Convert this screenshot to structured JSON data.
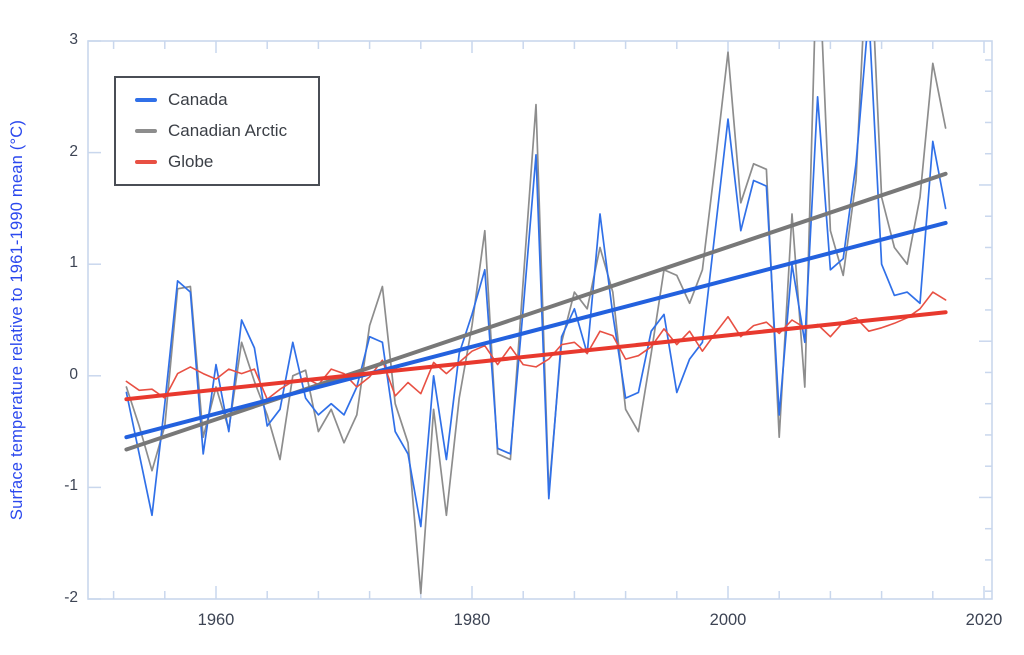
{
  "figure": {
    "background": "#ffffff",
    "frame_color": "#c9d7ed",
    "tick_label_color": "#3d4454",
    "y_axis_title_color": "#2b48ee"
  },
  "chart_data": {
    "type": "line",
    "title": "",
    "xlabel": "",
    "ylabel": "Surface temperature relative to 1961-1990 mean (°C)",
    "grid": false,
    "legend_position": "top-left",
    "x_range": [
      1950,
      2020.6
    ],
    "y_range": [
      -2,
      3
    ],
    "axes": {
      "x_tick_values": [
        1960,
        1980,
        2000,
        2020
      ],
      "x_tick_labels": [
        "1960",
        "1980",
        "2000",
        "2020"
      ],
      "x_minor_ticks": {
        "start": 1952,
        "step": 4,
        "end": 2020,
        "major_every": 20
      },
      "y_tick_values": [
        3,
        2,
        1,
        0,
        -1,
        -2
      ],
      "y_tick_labels": [
        "3",
        "2",
        "1",
        "0",
        "-1",
        "-2"
      ],
      "y_right_minor_ticks": {
        "start": 2.83,
        "step": -0.28,
        "count": 18,
        "long_every": 5,
        "long_offset": 4
      }
    },
    "x": [
      1953,
      1954,
      1955,
      1956,
      1957,
      1958,
      1959,
      1960,
      1961,
      1962,
      1963,
      1964,
      1965,
      1966,
      1967,
      1968,
      1969,
      1970,
      1971,
      1972,
      1973,
      1974,
      1975,
      1976,
      1977,
      1978,
      1979,
      1980,
      1981,
      1982,
      1983,
      1984,
      1985,
      1986,
      1987,
      1988,
      1989,
      1990,
      1991,
      1992,
      1993,
      1994,
      1995,
      1996,
      1997,
      1998,
      1999,
      2000,
      2001,
      2002,
      2003,
      2004,
      2005,
      2006,
      2007,
      2008,
      2009,
      2010,
      2011,
      2012,
      2013,
      2014,
      2015,
      2016,
      2017
    ],
    "series": [
      {
        "name": "Canada",
        "color": "#3070e8",
        "width": 1.7,
        "kind": "annual",
        "values": [
          -0.15,
          -0.7,
          -1.25,
          -0.25,
          0.85,
          0.75,
          -0.7,
          0.1,
          -0.5,
          0.5,
          0.25,
          -0.45,
          -0.3,
          0.3,
          -0.2,
          -0.35,
          -0.25,
          -0.35,
          -0.1,
          0.35,
          0.3,
          -0.5,
          -0.7,
          -1.35,
          0.0,
          -0.75,
          0.2,
          0.55,
          0.95,
          -0.65,
          -0.7,
          0.6,
          1.98,
          -1.1,
          0.35,
          0.6,
          0.2,
          1.45,
          0.55,
          -0.2,
          -0.15,
          0.4,
          0.55,
          -0.15,
          0.15,
          0.3,
          1.3,
          2.3,
          1.3,
          1.75,
          1.7,
          -0.35,
          1.0,
          0.3,
          2.5,
          0.95,
          1.05,
          1.9,
          3.25,
          1.0,
          0.72,
          0.75,
          0.65,
          2.1,
          1.5
        ]
      },
      {
        "name": "Canadian Arctic",
        "color": "#8d8d8d",
        "width": 1.7,
        "kind": "annual",
        "values": [
          -0.1,
          -0.45,
          -0.85,
          -0.45,
          0.78,
          0.8,
          -0.55,
          -0.1,
          -0.48,
          0.3,
          -0.05,
          -0.35,
          -0.75,
          0.0,
          0.05,
          -0.5,
          -0.3,
          -0.6,
          -0.35,
          0.45,
          0.8,
          -0.25,
          -0.6,
          -1.95,
          -0.3,
          -1.25,
          -0.2,
          0.45,
          1.3,
          -0.7,
          -0.75,
          0.85,
          2.43,
          -1.05,
          0.3,
          0.75,
          0.6,
          1.15,
          0.75,
          -0.3,
          -0.5,
          0.2,
          0.95,
          0.9,
          0.65,
          0.95,
          1.9,
          2.9,
          1.55,
          1.9,
          1.85,
          -0.55,
          1.45,
          -0.1,
          4.0,
          1.3,
          0.9,
          1.75,
          4.15,
          1.6,
          1.15,
          1.0,
          1.6,
          2.8,
          2.22
        ]
      },
      {
        "name": "Globe",
        "color": "#e85043",
        "width": 1.6,
        "kind": "annual",
        "values": [
          -0.05,
          -0.13,
          -0.12,
          -0.2,
          0.02,
          0.08,
          0.02,
          -0.03,
          0.06,
          0.02,
          0.06,
          -0.21,
          -0.12,
          -0.05,
          -0.02,
          -0.08,
          0.06,
          0.02,
          -0.1,
          -0.01,
          0.14,
          -0.18,
          -0.06,
          -0.16,
          0.12,
          0.02,
          0.12,
          0.22,
          0.27,
          0.1,
          0.26,
          0.1,
          0.08,
          0.15,
          0.28,
          0.3,
          0.2,
          0.4,
          0.36,
          0.15,
          0.18,
          0.26,
          0.42,
          0.28,
          0.4,
          0.22,
          0.38,
          0.53,
          0.35,
          0.45,
          0.48,
          0.38,
          0.5,
          0.43,
          0.46,
          0.35,
          0.48,
          0.52,
          0.4,
          0.43,
          0.47,
          0.52,
          0.6,
          0.75,
          0.68
        ]
      },
      {
        "name": "Canada trend",
        "color": "#2361de",
        "width": 4,
        "kind": "trend",
        "x": [
          1953,
          2017
        ],
        "values": [
          -0.55,
          1.37
        ]
      },
      {
        "name": "Canadian Arctic trend",
        "color": "#787878",
        "width": 4,
        "kind": "trend",
        "x": [
          1953,
          2017
        ],
        "values": [
          -0.66,
          1.81
        ]
      },
      {
        "name": "Globe trend",
        "color": "#e8392e",
        "width": 4,
        "kind": "trend",
        "x": [
          1953,
          2017
        ],
        "values": [
          -0.21,
          0.57
        ]
      }
    ]
  }
}
